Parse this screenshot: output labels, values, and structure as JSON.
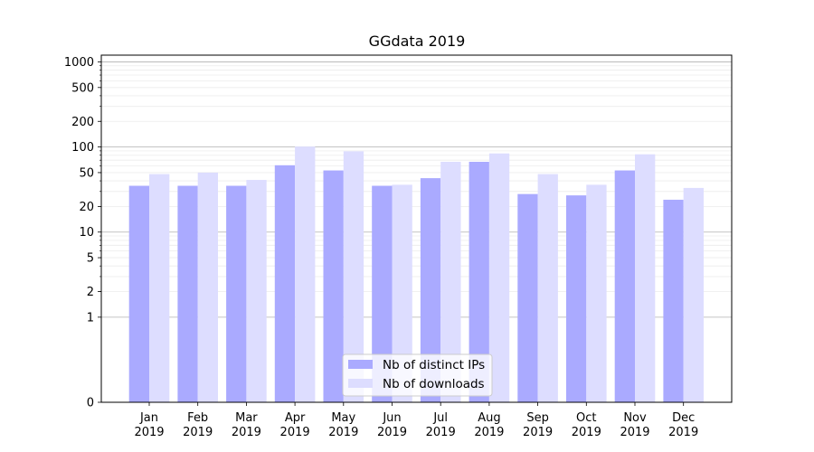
{
  "chart_data": {
    "type": "bar",
    "title": "GGdata 2019",
    "xlabel": "",
    "ylabel": "",
    "scale": "symlog",
    "categories": [
      {
        "month": "Jan",
        "year": "2019"
      },
      {
        "month": "Feb",
        "year": "2019"
      },
      {
        "month": "Mar",
        "year": "2019"
      },
      {
        "month": "Apr",
        "year": "2019"
      },
      {
        "month": "May",
        "year": "2019"
      },
      {
        "month": "Jun",
        "year": "2019"
      },
      {
        "month": "Jul",
        "year": "2019"
      },
      {
        "month": "Aug",
        "year": "2019"
      },
      {
        "month": "Sep",
        "year": "2019"
      },
      {
        "month": "Oct",
        "year": "2019"
      },
      {
        "month": "Nov",
        "year": "2019"
      },
      {
        "month": "Dec",
        "year": "2019"
      }
    ],
    "series": [
      {
        "name": "Nb of distinct IPs",
        "color": "#aaaaff",
        "values": [
          35,
          35,
          35,
          61,
          53,
          35,
          43,
          67,
          28,
          27,
          53,
          24
        ]
      },
      {
        "name": "Nb of downloads",
        "color": "#ddddff",
        "values": [
          48,
          50,
          41,
          101,
          89,
          36,
          67,
          84,
          48,
          36,
          82,
          33
        ]
      }
    ],
    "ylim": [
      0,
      1200
    ],
    "yticks": [
      {
        "value": 0,
        "label": "0"
      },
      {
        "value": 1,
        "label": "1"
      },
      {
        "value": 2,
        "label": "2"
      },
      {
        "value": 5,
        "label": "5"
      },
      {
        "value": 10,
        "label": "10"
      },
      {
        "value": 20,
        "label": "20"
      },
      {
        "value": 50,
        "label": "50"
      },
      {
        "value": 100,
        "label": "100"
      },
      {
        "value": 200,
        "label": "200"
      },
      {
        "value": 500,
        "label": "500"
      },
      {
        "value": 1000,
        "label": "1000"
      }
    ],
    "grid": true,
    "legend_position": "bottom-center"
  }
}
